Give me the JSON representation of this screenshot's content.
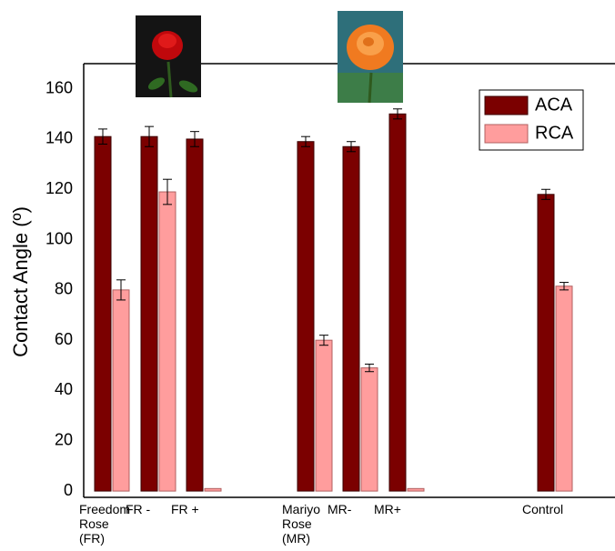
{
  "chart_data": {
    "type": "bar",
    "y_label": "Contact Angle (º)",
    "categories": [
      "Freedom Rose (FR)",
      "FR -",
      "FR +",
      "Mariyo Rose (MR)",
      "MR-",
      "MR+",
      "Control"
    ],
    "series": [
      {
        "name": "ACA",
        "color": "#7b0000",
        "values": [
          141,
          141,
          140,
          139,
          137,
          150,
          118
        ],
        "errors": [
          3,
          4,
          3,
          2,
          2,
          2,
          2
        ]
      },
      {
        "name": "RCA",
        "color": "#ff9d9d",
        "values": [
          80,
          119,
          1,
          60,
          49,
          1,
          81.5
        ],
        "errors": [
          4,
          5,
          0,
          2,
          1.5,
          0,
          1.5
        ]
      }
    ],
    "ylim": [
      -2.5,
      170
    ],
    "yticks": [
      0,
      20,
      40,
      60,
      80,
      100,
      120,
      140,
      160
    ],
    "grid": false,
    "legend": "upper right"
  }
}
